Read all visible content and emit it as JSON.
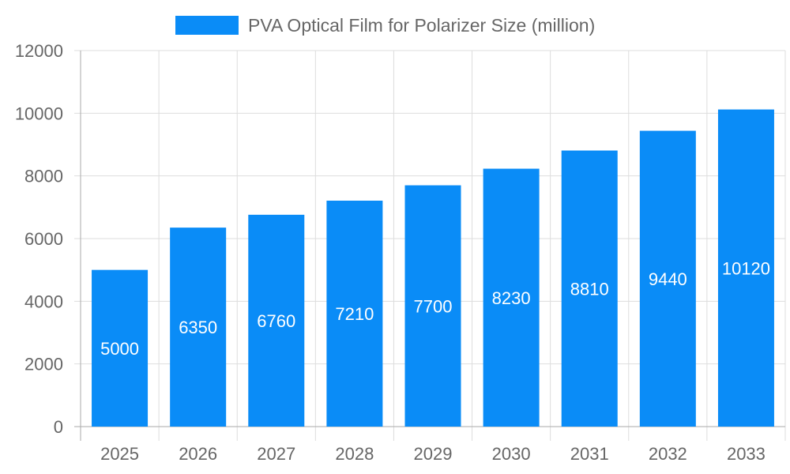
{
  "chart_data": {
    "type": "bar",
    "categories": [
      "2025",
      "2026",
      "2027",
      "2028",
      "2029",
      "2030",
      "2031",
      "2032",
      "2033"
    ],
    "series": [
      {
        "name": "PVA Optical Film for Polarizer Size (million)",
        "values": [
          5000,
          6350,
          6760,
          7210,
          7700,
          8230,
          8810,
          9440,
          10120
        ],
        "color": "#0a8cf7"
      }
    ],
    "ylim": [
      0,
      12000
    ],
    "yticks": [
      0,
      2000,
      4000,
      6000,
      8000,
      10000,
      12000
    ],
    "grid": true,
    "legend": "top-center",
    "data_labels": true
  }
}
